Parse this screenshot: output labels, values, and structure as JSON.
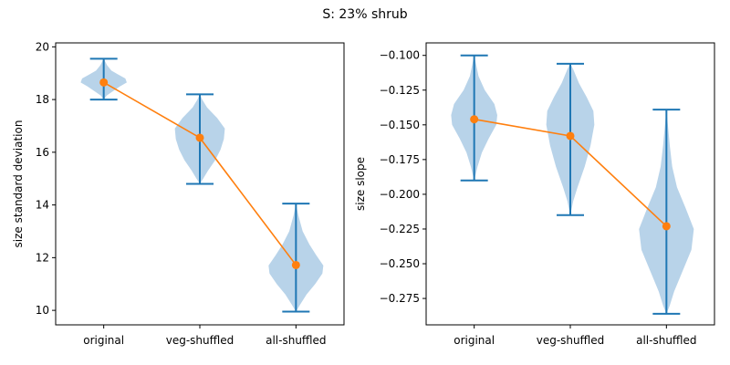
{
  "figure": {
    "title": "S: 23% shrub"
  },
  "colors": {
    "violin": "#1f77b4",
    "violin_fill": "#b8d3e9",
    "line": "#ff7f0e",
    "axis": "#000000"
  },
  "chart_data": [
    {
      "type": "violin",
      "ylabel": "size standard deviation",
      "xlabel": "",
      "categories": [
        "original",
        "veg-shuffled",
        "all-shuffled"
      ],
      "ylim": [
        9.45,
        20.15
      ],
      "yticks": [
        10,
        12,
        14,
        16,
        18,
        20
      ],
      "ytick_labels": [
        "10",
        "12",
        "14",
        "16",
        "18",
        "20"
      ],
      "violins": [
        {
          "min": 18.0,
          "max": 19.55,
          "profile": [
            [
              18.0,
              0.0
            ],
            [
              18.15,
              0.06
            ],
            [
              18.3,
              0.18
            ],
            [
              18.5,
              0.34
            ],
            [
              18.65,
              0.48
            ],
            [
              18.8,
              0.45
            ],
            [
              18.95,
              0.3
            ],
            [
              19.1,
              0.16
            ],
            [
              19.3,
              0.07
            ],
            [
              19.55,
              0.0
            ]
          ]
        },
        {
          "min": 14.8,
          "max": 18.2,
          "profile": [
            [
              14.8,
              0.0
            ],
            [
              15.0,
              0.07
            ],
            [
              15.3,
              0.17
            ],
            [
              15.7,
              0.32
            ],
            [
              16.1,
              0.43
            ],
            [
              16.5,
              0.5
            ],
            [
              16.9,
              0.52
            ],
            [
              17.3,
              0.36
            ],
            [
              17.7,
              0.15
            ],
            [
              18.0,
              0.05
            ],
            [
              18.2,
              0.0
            ]
          ]
        },
        {
          "min": 9.95,
          "max": 14.05,
          "profile": [
            [
              9.95,
              0.0
            ],
            [
              10.2,
              0.08
            ],
            [
              10.6,
              0.22
            ],
            [
              11.0,
              0.4
            ],
            [
              11.4,
              0.55
            ],
            [
              11.7,
              0.57
            ],
            [
              12.1,
              0.42
            ],
            [
              12.5,
              0.28
            ],
            [
              13.0,
              0.14
            ],
            [
              13.6,
              0.05
            ],
            [
              14.05,
              0.0
            ]
          ]
        }
      ],
      "series": [
        {
          "values": [
            18.65,
            16.55,
            11.72
          ]
        }
      ]
    },
    {
      "type": "violin",
      "ylabel": "size slope",
      "xlabel": "",
      "categories": [
        "original",
        "veg-shuffled",
        "all-shuffled"
      ],
      "ylim": [
        -0.294,
        -0.091
      ],
      "yticks": [
        -0.275,
        -0.25,
        -0.225,
        -0.2,
        -0.175,
        -0.15,
        -0.125,
        -0.1
      ],
      "ytick_labels": [
        "−0.275",
        "−0.250",
        "−0.225",
        "−0.200",
        "−0.175",
        "−0.150",
        "−0.125",
        "−0.100"
      ],
      "violins": [
        {
          "min": -0.19,
          "max": -0.1,
          "profile": [
            [
              -0.19,
              0.0
            ],
            [
              -0.18,
              0.07
            ],
            [
              -0.17,
              0.16
            ],
            [
              -0.16,
              0.3
            ],
            [
              -0.15,
              0.46
            ],
            [
              -0.143,
              0.48
            ],
            [
              -0.135,
              0.42
            ],
            [
              -0.125,
              0.22
            ],
            [
              -0.115,
              0.09
            ],
            [
              -0.105,
              0.03
            ],
            [
              -0.1,
              0.0
            ]
          ]
        },
        {
          "min": -0.215,
          "max": -0.106,
          "profile": [
            [
              -0.215,
              0.0
            ],
            [
              -0.205,
              0.06
            ],
            [
              -0.195,
              0.15
            ],
            [
              -0.18,
              0.3
            ],
            [
              -0.165,
              0.42
            ],
            [
              -0.15,
              0.5
            ],
            [
              -0.14,
              0.48
            ],
            [
              -0.13,
              0.34
            ],
            [
              -0.12,
              0.18
            ],
            [
              -0.11,
              0.06
            ],
            [
              -0.106,
              0.0
            ]
          ]
        },
        {
          "min": -0.286,
          "max": -0.139,
          "profile": [
            [
              -0.286,
              0.0
            ],
            [
              -0.28,
              0.07
            ],
            [
              -0.27,
              0.16
            ],
            [
              -0.255,
              0.34
            ],
            [
              -0.24,
              0.52
            ],
            [
              -0.225,
              0.57
            ],
            [
              -0.21,
              0.4
            ],
            [
              -0.195,
              0.22
            ],
            [
              -0.18,
              0.12
            ],
            [
              -0.165,
              0.07
            ],
            [
              -0.15,
              0.03
            ],
            [
              -0.139,
              0.0
            ]
          ]
        }
      ],
      "series": [
        {
          "values": [
            -0.146,
            -0.158,
            -0.223
          ]
        }
      ]
    }
  ]
}
